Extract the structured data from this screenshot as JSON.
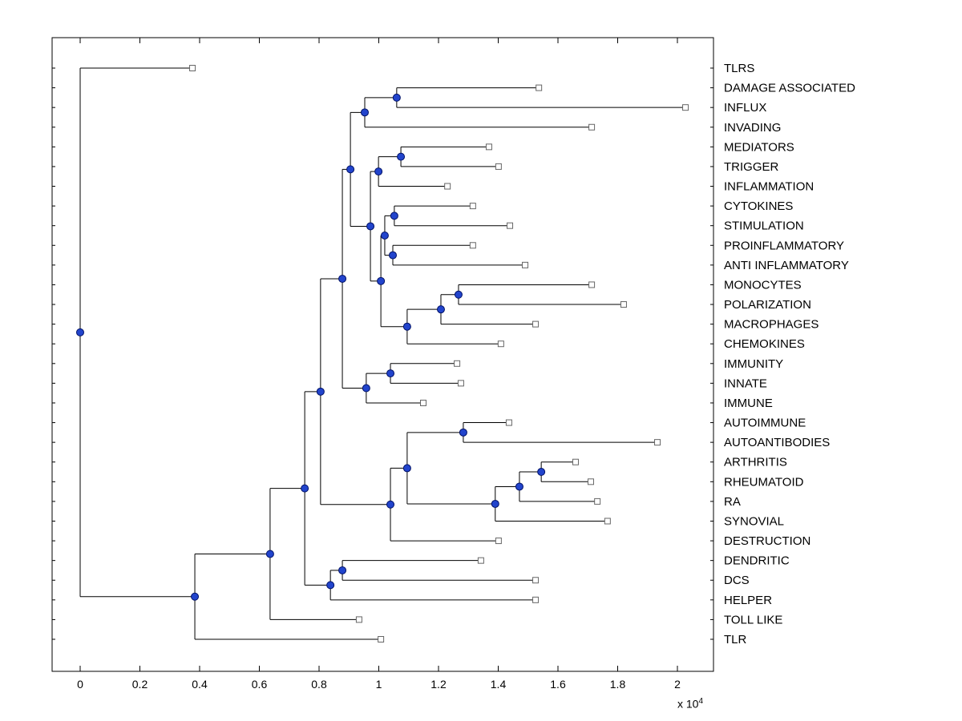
{
  "figure": {
    "background": "#ffffff"
  },
  "chart_data": {
    "type": "dendrogram",
    "title": "",
    "orientation": "horizontal-leaves-right",
    "units_note": "all branch/leaf x values are in units of 1e4 (axis shows x 10^4)",
    "x_axis": {
      "tick_values": [
        0,
        0.2,
        0.4,
        0.6,
        0.8,
        1,
        1.2,
        1.4,
        1.6,
        1.8,
        2
      ],
      "tick_labels": [
        "0",
        "0.2",
        "0.4",
        "0.6",
        "0.8",
        "1",
        "1.2",
        "1.4",
        "1.6",
        "1.8",
        "2"
      ],
      "exponent_prefix": "x 10",
      "exponent": "4",
      "range": [
        -0.095,
        2.12
      ]
    },
    "colors": {
      "axis": "#000000",
      "line": "#000000",
      "text": "#000000",
      "branch_node_fill": "#2244cc",
      "branch_node_edge": "#001166",
      "leaf_marker_fill": "#ffffff",
      "leaf_marker_edge": "#666666"
    },
    "leaves": [
      {
        "name": "TLRS",
        "x": 0.376
      },
      {
        "name": "DAMAGE ASSOCIATED",
        "x": 1.536
      },
      {
        "name": "INFLUX",
        "x": 2.027
      },
      {
        "name": "INVADING",
        "x": 1.713
      },
      {
        "name": "MEDIATORS",
        "x": 1.369
      },
      {
        "name": "TRIGGER",
        "x": 1.401
      },
      {
        "name": "INFLAMMATION",
        "x": 1.23
      },
      {
        "name": "CYTOKINES",
        "x": 1.315
      },
      {
        "name": "STIMULATION",
        "x": 1.439
      },
      {
        "name": "PROINFLAMMATORY",
        "x": 1.315
      },
      {
        "name": "ANTI INFLAMMATORY",
        "x": 1.49
      },
      {
        "name": "MONOCYTES",
        "x": 1.713
      },
      {
        "name": "POLARIZATION",
        "x": 1.82
      },
      {
        "name": "MACROPHAGES",
        "x": 1.525
      },
      {
        "name": "CHEMOKINES",
        "x": 1.409
      },
      {
        "name": "IMMUNITY",
        "x": 1.262
      },
      {
        "name": "INNATE",
        "x": 1.275
      },
      {
        "name": "IMMUNE",
        "x": 1.149
      },
      {
        "name": "AUTOIMMUNE",
        "x": 1.436
      },
      {
        "name": "AUTOANTIBODIES",
        "x": 1.933
      },
      {
        "name": "ARTHRITIS",
        "x": 1.659
      },
      {
        "name": "RHEUMATOID",
        "x": 1.71
      },
      {
        "name": "RA",
        "x": 1.732
      },
      {
        "name": "SYNOVIAL",
        "x": 1.766
      },
      {
        "name": "DESTRUCTION",
        "x": 1.401
      },
      {
        "name": "DENDRITIC",
        "x": 1.342
      },
      {
        "name": "DCS",
        "x": 1.525
      },
      {
        "name": "HELPER",
        "x": 1.525
      },
      {
        "name": "TOLL LIKE",
        "x": 0.934
      },
      {
        "name": "TLR",
        "x": 1.007
      }
    ],
    "tree": {
      "v": 0.0,
      "children": [
        {
          "leaf": "TLRS"
        },
        {
          "v": 0.384,
          "children": [
            {
              "v": 0.636,
              "children": [
                {
                  "v": 0.752,
                  "children": [
                    {
                      "v": 0.805,
                      "children": [
                        {
                          "v": 0.878,
                          "children": [
                            {
                              "v": 0.905,
                              "children": [
                                {
                                  "v": 0.953,
                                  "children": [
                                    {
                                      "v": 1.06,
                                      "children": [
                                        {
                                          "leaf": "DAMAGE ASSOCIATED"
                                        },
                                        {
                                          "leaf": "INFLUX"
                                        }
                                      ]
                                    },
                                    {
                                      "leaf": "INVADING"
                                    }
                                  ]
                                },
                                {
                                  "v": 0.972,
                                  "children": [
                                    {
                                      "v": 0.999,
                                      "children": [
                                        {
                                          "v": 1.074,
                                          "children": [
                                            {
                                              "leaf": "MEDIATORS"
                                            },
                                            {
                                              "leaf": "TRIGGER"
                                            }
                                          ]
                                        },
                                        {
                                          "leaf": "INFLAMMATION"
                                        }
                                      ]
                                    },
                                    {
                                      "v": 1.007,
                                      "children": [
                                        {
                                          "v": 1.02,
                                          "children": [
                                            {
                                              "v": 1.052,
                                              "children": [
                                                {
                                                  "leaf": "CYTOKINES"
                                                },
                                                {
                                                  "leaf": "STIMULATION"
                                                }
                                              ]
                                            },
                                            {
                                              "v": 1.047,
                                              "children": [
                                                {
                                                  "leaf": "PROINFLAMMATORY"
                                                },
                                                {
                                                  "leaf": "ANTI INFLAMMATORY"
                                                }
                                              ]
                                            }
                                          ]
                                        },
                                        {
                                          "v": 1.095,
                                          "children": [
                                            {
                                              "v": 1.208,
                                              "children": [
                                                {
                                                  "v": 1.267,
                                                  "children": [
                                                    {
                                                      "leaf": "MONOCYTES"
                                                    },
                                                    {
                                                      "leaf": "POLARIZATION"
                                                    }
                                                  ]
                                                },
                                                {
                                                  "leaf": "MACROPHAGES"
                                                }
                                              ]
                                            },
                                            {
                                              "leaf": "CHEMOKINES"
                                            }
                                          ]
                                        }
                                      ]
                                    }
                                  ]
                                }
                              ]
                            },
                            {
                              "v": 0.958,
                              "children": [
                                {
                                  "v": 1.039,
                                  "children": [
                                    {
                                      "leaf": "IMMUNITY"
                                    },
                                    {
                                      "leaf": "INNATE"
                                    }
                                  ]
                                },
                                {
                                  "leaf": "IMMUNE"
                                }
                              ]
                            }
                          ]
                        },
                        {
                          "v": 1.039,
                          "children": [
                            {
                              "v": 1.095,
                              "children": [
                                {
                                  "v": 1.283,
                                  "children": [
                                    {
                                      "leaf": "AUTOIMMUNE"
                                    },
                                    {
                                      "leaf": "AUTOANTIBODIES"
                                    }
                                  ]
                                },
                                {
                                  "v": 1.39,
                                  "children": [
                                    {
                                      "v": 1.471,
                                      "children": [
                                        {
                                          "v": 1.544,
                                          "children": [
                                            {
                                              "leaf": "ARTHRITIS"
                                            },
                                            {
                                              "leaf": "RHEUMATOID"
                                            }
                                          ]
                                        },
                                        {
                                          "leaf": "RA"
                                        }
                                      ]
                                    },
                                    {
                                      "leaf": "SYNOVIAL"
                                    }
                                  ]
                                }
                              ]
                            },
                            {
                              "leaf": "DESTRUCTION"
                            }
                          ]
                        }
                      ]
                    },
                    {
                      "v": 0.838,
                      "children": [
                        {
                          "v": 0.878,
                          "children": [
                            {
                              "leaf": "DENDRITIC"
                            },
                            {
                              "leaf": "DCS"
                            }
                          ]
                        },
                        {
                          "leaf": "HELPER"
                        }
                      ]
                    }
                  ]
                },
                {
                  "leaf": "TOLL LIKE"
                }
              ]
            },
            {
              "leaf": "TLR"
            }
          ]
        }
      ]
    }
  }
}
